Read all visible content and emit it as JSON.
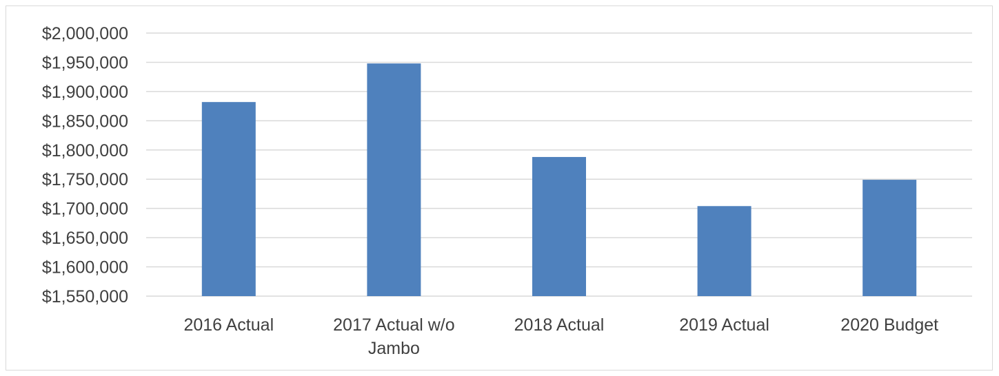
{
  "chart_data": {
    "type": "bar",
    "title": "",
    "xlabel": "",
    "ylabel": "",
    "categories": [
      [
        "2016 Actual"
      ],
      [
        "2017 Actual w/o",
        "Jambo"
      ],
      [
        "2018 Actual"
      ],
      [
        "2019 Actual"
      ],
      [
        "2020 Budget"
      ]
    ],
    "values": [
      1882000,
      1948000,
      1788000,
      1704000,
      1749000
    ],
    "ylim": [
      1550000,
      2000000
    ],
    "yticks": [
      1550000,
      1600000,
      1650000,
      1700000,
      1750000,
      1800000,
      1850000,
      1900000,
      1950000,
      2000000
    ],
    "ytick_labels": [
      "$1,550,000",
      "$1,600,000",
      "$1,650,000",
      "$1,700,000",
      "$1,750,000",
      "$1,800,000",
      "$1,850,000",
      "$1,900,000",
      "$1,950,000",
      "$2,000,000"
    ],
    "grid": true,
    "legend": "none",
    "colors": {
      "bar": "#4f81bd",
      "grid": "#d9d9d9",
      "text": "#404040"
    }
  }
}
